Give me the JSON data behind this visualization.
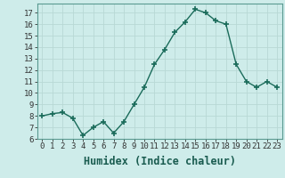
{
  "x": [
    0,
    1,
    2,
    3,
    4,
    5,
    6,
    7,
    8,
    9,
    10,
    11,
    12,
    13,
    14,
    15,
    16,
    17,
    18,
    19,
    20,
    21,
    22,
    23
  ],
  "y": [
    8.0,
    8.2,
    8.3,
    7.8,
    6.3,
    7.0,
    7.5,
    6.5,
    7.5,
    9.0,
    10.5,
    12.5,
    13.8,
    15.3,
    16.2,
    17.3,
    17.0,
    16.3,
    16.0,
    12.5,
    11.0,
    10.5,
    11.0,
    10.5
  ],
  "xlabel": "Humidex (Indice chaleur)",
  "ylim": [
    6,
    17.8
  ],
  "xlim": [
    -0.5,
    23.5
  ],
  "yticks": [
    6,
    7,
    8,
    9,
    10,
    11,
    12,
    13,
    14,
    15,
    16,
    17
  ],
  "xticks": [
    0,
    1,
    2,
    3,
    4,
    5,
    6,
    7,
    8,
    9,
    10,
    11,
    12,
    13,
    14,
    15,
    16,
    17,
    18,
    19,
    20,
    21,
    22,
    23
  ],
  "line_color": "#1a6b5a",
  "marker": "+",
  "marker_size": 4,
  "bg_color": "#ceecea",
  "grid_color": "#b8d8d5",
  "axes_bg": "#ceecea",
  "tick_label_fontsize": 6.5,
  "xlabel_fontsize": 8.5,
  "line_width": 1.0
}
